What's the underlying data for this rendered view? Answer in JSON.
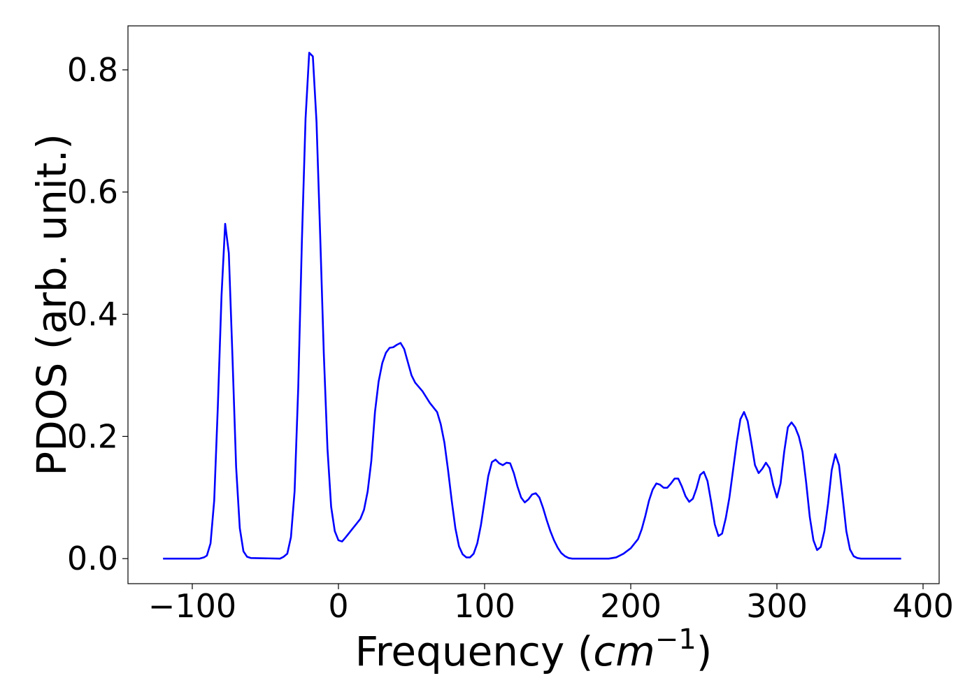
{
  "chart_data": {
    "type": "line",
    "xlabel_parts": [
      "Frequency (",
      "cm",
      "−1",
      ")"
    ],
    "ylabel": "PDOS (arb. unit.)",
    "xlim": [
      -144,
      411
    ],
    "ylim": [
      -0.041,
      0.872
    ],
    "xticks": [
      {
        "value": -100,
        "label": "−100"
      },
      0,
      100,
      200,
      300,
      400
    ],
    "yticks": [
      {
        "value": 0,
        "label": "0.0"
      },
      0.2,
      0.4,
      0.6,
      0.8
    ],
    "grid": false,
    "x": [
      -120,
      -95,
      -92,
      -90,
      -87.5,
      -85,
      -82.5,
      -80,
      -77.5,
      -75,
      -72.5,
      -70,
      -67.5,
      -65,
      -62.5,
      -60,
      -40,
      -37.5,
      -35,
      -32.5,
      -30,
      -27.5,
      -25,
      -22.5,
      -20,
      -17.5,
      -15,
      -12.5,
      -10,
      -7.5,
      -5,
      -2.5,
      0,
      2.5,
      5,
      10,
      15,
      17.5,
      20,
      22.5,
      25,
      27.5,
      30,
      32.5,
      35,
      37.5,
      40,
      42.5,
      45,
      50,
      52.5,
      57.5,
      62.5,
      67.5,
      70,
      72.5,
      75,
      77.5,
      80,
      82.5,
      85,
      87.5,
      90,
      92.5,
      95,
      97.5,
      100,
      102.5,
      105,
      107.5,
      110,
      112.5,
      115,
      117.5,
      120,
      122.5,
      125,
      127.5,
      130,
      132.5,
      135,
      137.5,
      140,
      142.5,
      145,
      147.5,
      150,
      152.5,
      155,
      157.5,
      160,
      185,
      190,
      195,
      200,
      205,
      207.5,
      210,
      212.5,
      215,
      217.5,
      220,
      222.5,
      225,
      227.5,
      230,
      232.5,
      235,
      237.5,
      240,
      242.5,
      245,
      247.5,
      250,
      252.5,
      255,
      257.5,
      260,
      262.5,
      265,
      267.5,
      270,
      272.5,
      275,
      277.5,
      280,
      282.5,
      285,
      287.5,
      290,
      292.5,
      295,
      297.5,
      300,
      302.5,
      305,
      307.5,
      310,
      312.5,
      315,
      317.5,
      320,
      322.5,
      325,
      327.5,
      330,
      332.5,
      335,
      337.5,
      340,
      342.5,
      345,
      347.5,
      350,
      352.5,
      355,
      357.5,
      385
    ],
    "series": [
      {
        "color": "#0000ff",
        "values": [
          0,
          0,
          0.002,
          0.005,
          0.025,
          0.095,
          0.25,
          0.43,
          0.548,
          0.5,
          0.33,
          0.15,
          0.05,
          0.012,
          0.003,
          0.001,
          0,
          0.003,
          0.008,
          0.035,
          0.11,
          0.28,
          0.52,
          0.72,
          0.828,
          0.822,
          0.715,
          0.53,
          0.335,
          0.18,
          0.085,
          0.045,
          0.03,
          0.028,
          0.035,
          0.05,
          0.065,
          0.08,
          0.11,
          0.16,
          0.24,
          0.29,
          0.32,
          0.337,
          0.345,
          0.346,
          0.35,
          0.353,
          0.343,
          0.3,
          0.288,
          0.274,
          0.255,
          0.24,
          0.22,
          0.19,
          0.145,
          0.095,
          0.05,
          0.02,
          0.007,
          0.002,
          0.002,
          0.008,
          0.025,
          0.055,
          0.095,
          0.135,
          0.158,
          0.162,
          0.156,
          0.153,
          0.157,
          0.156,
          0.14,
          0.118,
          0.1,
          0.092,
          0.097,
          0.105,
          0.107,
          0.1,
          0.083,
          0.063,
          0.045,
          0.03,
          0.018,
          0.009,
          0.004,
          0.001,
          0,
          0,
          0.002,
          0.008,
          0.017,
          0.032,
          0.048,
          0.07,
          0.095,
          0.113,
          0.123,
          0.121,
          0.116,
          0.116,
          0.123,
          0.131,
          0.131,
          0.118,
          0.102,
          0.093,
          0.098,
          0.115,
          0.137,
          0.142,
          0.127,
          0.093,
          0.056,
          0.037,
          0.041,
          0.066,
          0.1,
          0.145,
          0.19,
          0.228,
          0.24,
          0.225,
          0.19,
          0.153,
          0.14,
          0.147,
          0.157,
          0.148,
          0.12,
          0.1,
          0.123,
          0.175,
          0.215,
          0.223,
          0.215,
          0.2,
          0.175,
          0.125,
          0.068,
          0.03,
          0.014,
          0.019,
          0.045,
          0.09,
          0.145,
          0.171,
          0.153,
          0.1,
          0.045,
          0.015,
          0.004,
          0.001,
          0,
          0
        ]
      }
    ]
  }
}
